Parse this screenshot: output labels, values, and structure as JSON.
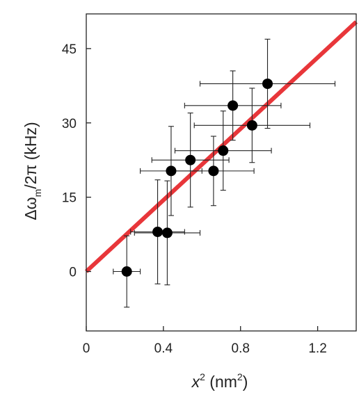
{
  "chart_data": {
    "type": "scatter",
    "title": "",
    "xlabel": {
      "base": "x",
      "sup": "2",
      "unit_pre": " (nm",
      "unit_sup": "2",
      "unit_post": ")"
    },
    "ylabel": {
      "pre": "Δω",
      "sub": "m",
      "post": "/2π (kHz)"
    },
    "xlim": [
      0,
      1.4
    ],
    "ylim": [
      -12,
      52
    ],
    "xticks": [
      0,
      0.4,
      0.8,
      1.2
    ],
    "xtick_labels": [
      "0",
      "0.4",
      "0.8",
      "1.2"
    ],
    "yticks": [
      0,
      15,
      30,
      45
    ],
    "ytick_labels": [
      "0",
      "15",
      "30",
      "45"
    ],
    "grid": false,
    "colors": {
      "points": "#000000",
      "fit_line": "#e8363a",
      "error_bars": "#222222",
      "axes": "#222222"
    },
    "points": [
      {
        "x": 0.21,
        "y": 0.0,
        "xerr": 0.07,
        "yerr": 7.2
      },
      {
        "x": 0.37,
        "y": 8.0,
        "xerr": 0.14,
        "yerr": 10.5
      },
      {
        "x": 0.42,
        "y": 7.8,
        "xerr": 0.17,
        "yerr": 10.5
      },
      {
        "x": 0.44,
        "y": 20.3,
        "xerr": 0.16,
        "yerr": 9.0
      },
      {
        "x": 0.54,
        "y": 22.5,
        "xerr": 0.2,
        "yerr": 9.5
      },
      {
        "x": 0.66,
        "y": 20.3,
        "xerr": 0.21,
        "yerr": 7.0
      },
      {
        "x": 0.71,
        "y": 24.4,
        "xerr": 0.25,
        "yerr": 8.0
      },
      {
        "x": 0.76,
        "y": 33.5,
        "xerr": 0.25,
        "yerr": 7.0
      },
      {
        "x": 0.86,
        "y": 29.5,
        "xerr": 0.3,
        "yerr": 7.5
      },
      {
        "x": 0.94,
        "y": 37.9,
        "xerr": 0.35,
        "yerr": 9.0
      }
    ],
    "fit_line": {
      "slope": 36.0,
      "intercept": 0.0,
      "x_range": [
        0,
        1.4
      ]
    }
  }
}
